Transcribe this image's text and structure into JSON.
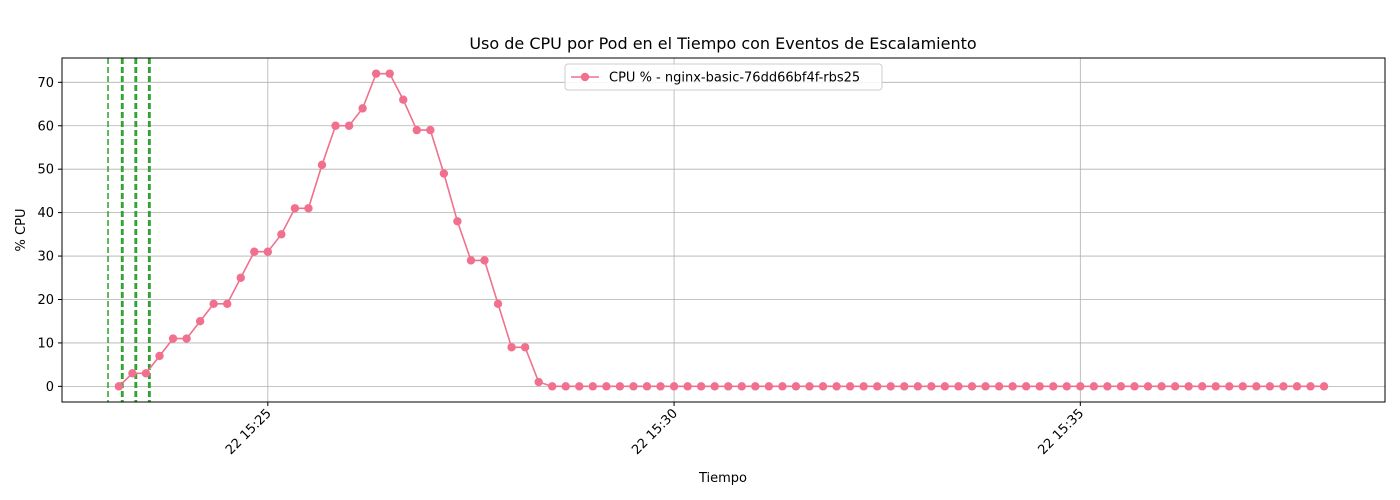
{
  "chart_data": {
    "type": "line",
    "title": "Uso de CPU por Pod en el Tiempo con Eventos de Escalamiento",
    "xlabel": "Tiempo",
    "ylabel": "% CPU",
    "xlim": [
      "22 15:22:28",
      "22 15:38:45"
    ],
    "ylim": [
      -3.6,
      75.6
    ],
    "grid": true,
    "legend_position": "top-center",
    "x_ticks": [
      "22 15:25",
      "22 15:30",
      "22 15:35"
    ],
    "y_ticks": [
      0,
      10,
      20,
      30,
      40,
      50,
      60,
      70
    ],
    "series": [
      {
        "name": "CPU % - nginx-basic-76dd66bf4f-rbs25",
        "color": "#f0708e",
        "marker": "circle",
        "x_start": "22 15:23:10",
        "x_step_seconds": 10,
        "values": [
          0,
          3,
          3,
          7,
          11,
          11,
          15,
          19,
          19,
          25,
          31,
          31,
          35,
          41,
          41,
          51,
          60,
          60,
          64,
          72,
          72,
          66,
          59,
          59,
          49,
          38,
          29,
          29,
          19,
          9,
          9,
          1,
          0,
          0,
          0,
          0,
          0,
          0,
          0,
          0,
          0,
          0,
          0,
          0,
          0,
          0,
          0,
          0,
          0,
          0,
          0,
          0,
          0,
          0,
          0,
          0,
          0,
          0,
          0,
          0,
          0,
          0,
          0,
          0,
          0,
          0,
          0,
          0,
          0,
          0,
          0,
          0,
          0,
          0,
          0,
          0,
          0,
          0,
          0,
          0,
          0,
          0,
          0,
          0,
          0,
          0,
          0,
          0,
          0,
          0
        ]
      }
    ],
    "scaling_events": {
      "color": "#2ca02c",
      "style": "dashed",
      "times": [
        "22 15:23:02",
        "22 15:23:12",
        "22 15:23:13",
        "22 15:23:22",
        "22 15:23:23",
        "22 15:23:32",
        "22 15:23:33"
      ]
    }
  }
}
